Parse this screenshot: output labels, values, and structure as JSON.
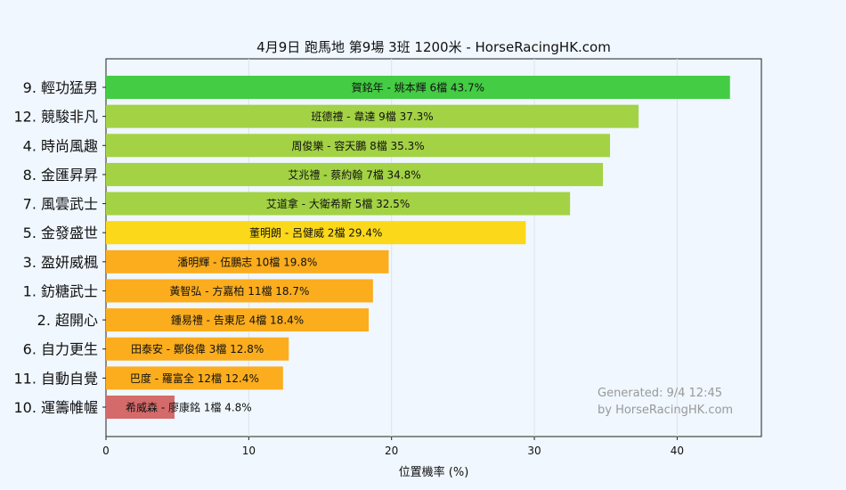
{
  "chart_data": {
    "type": "bar",
    "orientation": "horizontal",
    "title": "4月9日  跑馬地  第9場  3班  1200米 - HorseRacingHK.com",
    "xlabel": "位置機率 (%)",
    "ylabel": "",
    "xlim": [
      0,
      45.9
    ],
    "xticks": [
      "0",
      "10",
      "20",
      "30",
      "40"
    ],
    "grid": "vertical",
    "categories": [
      "9. 輕功猛男",
      "12. 競駿非凡",
      "4. 時尚風趣",
      "8. 金匯昇昇",
      "7. 風雲武士",
      "5. 金發盛世",
      "3. 盈妍威楓",
      "1. 鈁糖武士",
      "2. 超開心",
      "6. 自力更生",
      "11. 自動自覺",
      "10. 運籌帷幄"
    ],
    "values": [
      43.7,
      37.3,
      35.3,
      34.8,
      32.5,
      29.4,
      19.8,
      18.7,
      18.4,
      12.8,
      12.4,
      4.8
    ],
    "labels": [
      "賀銘年 - 姚本輝 6檔  43.7%",
      "班德禮 - 韋達 9檔  37.3%",
      "周俊樂 - 容天鵬 8檔  35.3%",
      "艾兆禮 - 蔡約翰 7檔  34.8%",
      "艾道拿 - 大衛希斯 5檔  32.5%",
      "董明朗 - 呂健威 2檔  29.4%",
      "潘明輝 - 伍鵬志 10檔  19.8%",
      "黃智弘 - 方嘉柏 11檔  18.7%",
      "鍾易禮 - 告東尼 4檔  18.4%",
      "田泰安 - 鄭俊偉 3檔  12.8%",
      "巴度 - 羅富全 12檔  12.4%",
      "希威森 - 廖康銘 1檔  4.8%"
    ],
    "colors": [
      "#44cc44",
      "#a3d244",
      "#a3d244",
      "#a3d244",
      "#a3d244",
      "#fbd81a",
      "#fbad1e",
      "#fbad1e",
      "#fbad1e",
      "#fbad1e",
      "#fbad1e",
      "#d46a6a"
    ],
    "footer": [
      "Generated: 9/4 12:45",
      "by HorseRacingHK.com"
    ]
  }
}
